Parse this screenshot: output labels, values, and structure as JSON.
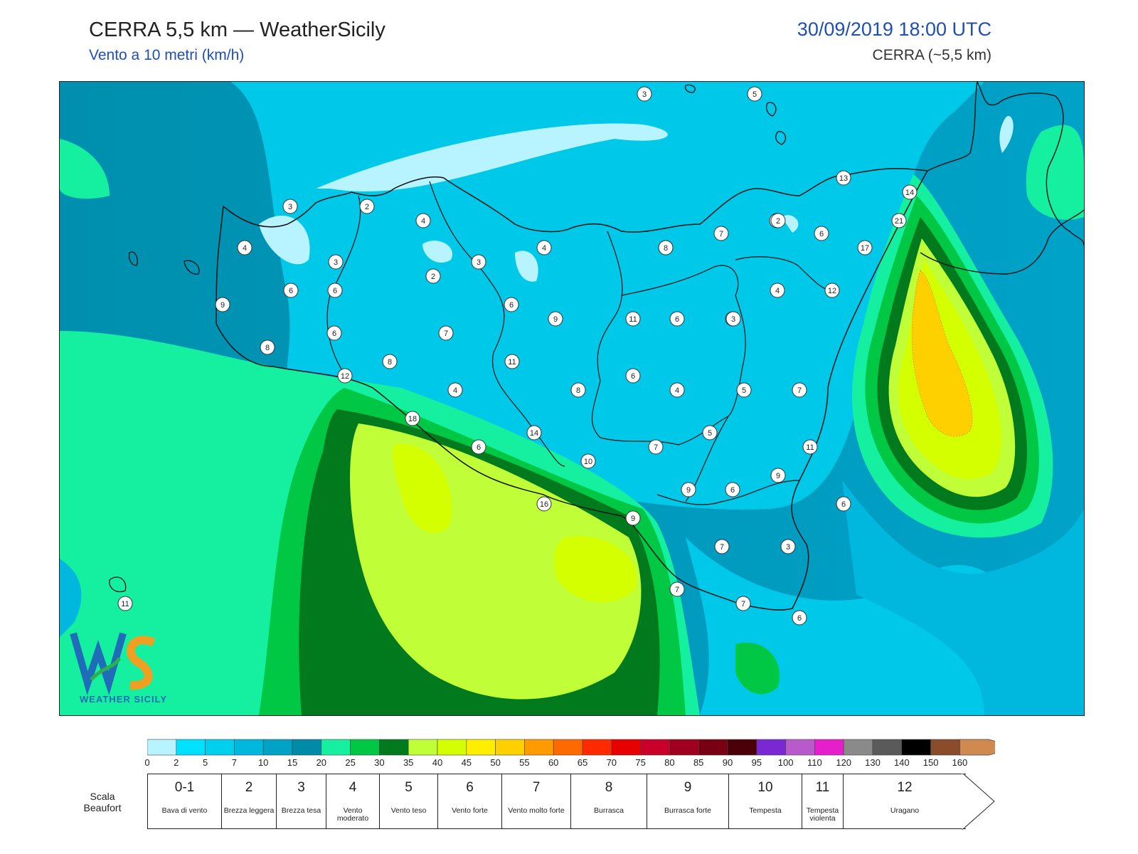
{
  "header": {
    "title": "CERRA 5,5 km — WeatherSicily",
    "subtitle": "Vento a 10 metri (km/h)",
    "date": "30/09/2019 18:00 UTC",
    "model": "CERRA (~5,5 km)"
  },
  "logo": {
    "text": "WEATHER SICILY",
    "mark": "WS"
  },
  "legend": {
    "ticks": [
      "0",
      "2",
      "5",
      "7",
      "10",
      "15",
      "20",
      "25",
      "30",
      "35",
      "40",
      "45",
      "50",
      "55",
      "60",
      "65",
      "70",
      "75",
      "80",
      "85",
      "90",
      "95",
      "100",
      "110",
      "120",
      "130",
      "140",
      "150",
      "160"
    ],
    "colors": [
      "#b8f4ff",
      "#00e0ff",
      "#00cfee",
      "#00b7de",
      "#00a3c6",
      "#008ca8",
      "#14f0a0",
      "#00c844",
      "#007a1c",
      "#c0ff38",
      "#d4ff00",
      "#ffee00",
      "#ffd000",
      "#ff9a00",
      "#ff6a00",
      "#ff2a00",
      "#e60000",
      "#c8002a",
      "#a0001e",
      "#780010",
      "#4a0008",
      "#7a28d2",
      "#b85acc",
      "#e61ecc",
      "#8a8a8a",
      "#5a5a5a",
      "#000000",
      "#8a4c2a",
      "#d08a50"
    ]
  },
  "beaufort": {
    "title": "Scala Beaufort",
    "levels": [
      {
        "num": "0-1",
        "desc": "Bava di vento"
      },
      {
        "num": "2",
        "desc": "Brezza leggera"
      },
      {
        "num": "3",
        "desc": "Brezza tesa"
      },
      {
        "num": "4",
        "desc": "Vento moderato"
      },
      {
        "num": "5",
        "desc": "Vento teso"
      },
      {
        "num": "6",
        "desc": "Vento forte"
      },
      {
        "num": "7",
        "desc": "Vento molto forte"
      },
      {
        "num": "8",
        "desc": "Burrasca"
      },
      {
        "num": "9",
        "desc": "Burrasca forte"
      },
      {
        "num": "10",
        "desc": "Tempesta"
      },
      {
        "num": "11",
        "desc": "Tempesta violenta"
      },
      {
        "num": "12",
        "desc": "Uragano"
      }
    ]
  },
  "stations": [
    "3",
    "5",
    "13",
    "14",
    "21",
    "2",
    "3",
    "4",
    "2",
    "3",
    "4",
    "3",
    "2",
    "3",
    "4",
    "8",
    "7",
    "2",
    "6",
    "17",
    "9",
    "6",
    "3",
    "6",
    "4",
    "12",
    "6",
    "6",
    "7",
    "9",
    "11",
    "6",
    "3",
    "8",
    "8",
    "12",
    "11",
    "4",
    "8",
    "6",
    "4",
    "5",
    "7",
    "18",
    "14",
    "5",
    "6",
    "10",
    "7",
    "11",
    "9",
    "9",
    "6",
    "16",
    "9",
    "6",
    "7",
    "3",
    "7",
    "7",
    "6",
    "11"
  ]
}
